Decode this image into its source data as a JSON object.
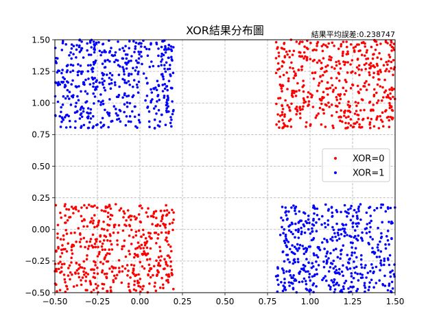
{
  "chart_data": {
    "type": "scatter",
    "title": "XOR結果分布圖",
    "subtitle": "結果平均誤差:0.238747",
    "xlabel": "",
    "ylabel": "",
    "xlim": [
      -0.5,
      1.5
    ],
    "ylim": [
      -0.5,
      1.5
    ],
    "xticks": [
      -0.5,
      -0.25,
      0.0,
      0.25,
      0.5,
      0.75,
      1.0,
      1.25,
      1.5
    ],
    "yticks": [
      -0.5,
      -0.25,
      0.0,
      0.25,
      0.5,
      0.75,
      1.0,
      1.25,
      1.5
    ],
    "xtick_labels": [
      "−0.50",
      "−0.25",
      "0.00",
      "0.25",
      "0.50",
      "0.75",
      "1.00",
      "1.25",
      "1.50"
    ],
    "ytick_labels": [
      "−0.50",
      "−0.25",
      "0.00",
      "0.25",
      "0.50",
      "0.75",
      "1.00",
      "1.25",
      "1.50"
    ],
    "grid": true,
    "legend_position": "center-right",
    "series": [
      {
        "name": "XOR=0",
        "color": "#ff0000",
        "clusters": [
          {
            "x_range": [
              -0.5,
              0.2
            ],
            "y_range": [
              -0.5,
              0.2
            ],
            "points": 500
          },
          {
            "x_range": [
              0.8,
              1.5
            ],
            "y_range": [
              0.8,
              1.5
            ],
            "points": 500
          }
        ]
      },
      {
        "name": "XOR=1",
        "color": "#0000ff",
        "clusters": [
          {
            "x_range": [
              -0.5,
              0.2
            ],
            "y_range": [
              0.8,
              1.5
            ],
            "points": 500
          },
          {
            "x_range": [
              0.8,
              1.5
            ],
            "y_range": [
              -0.5,
              0.2
            ],
            "points": 500
          }
        ]
      }
    ]
  }
}
